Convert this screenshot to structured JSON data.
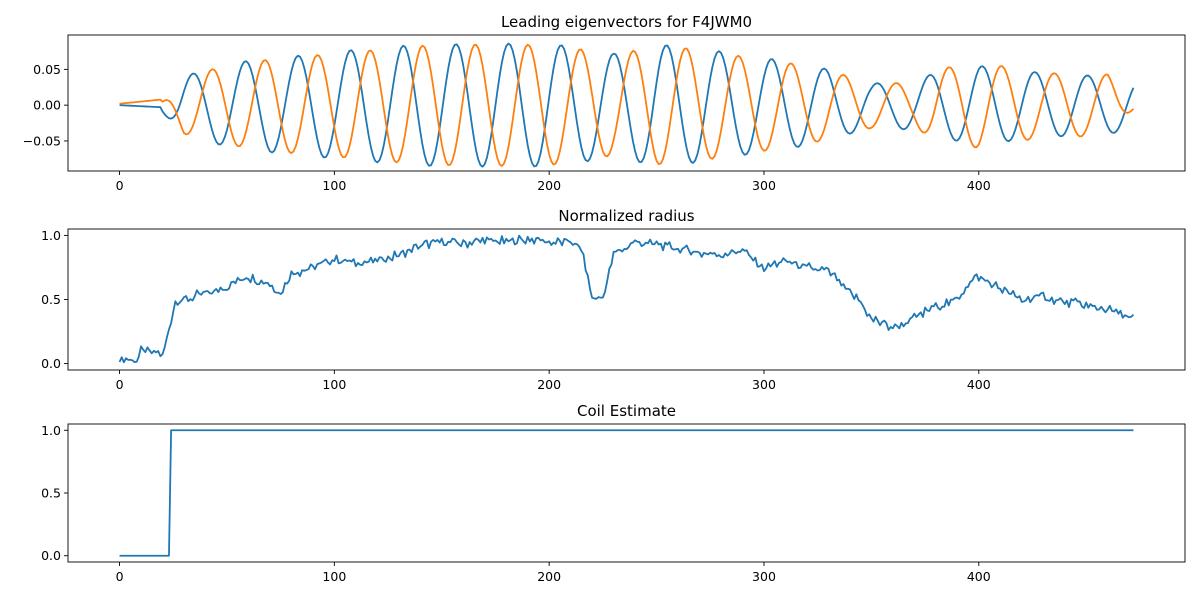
{
  "chart_data": [
    {
      "type": "line",
      "title": "Leading eigenvectors for F4JWM0",
      "xlabel": "",
      "ylabel": "",
      "xlim": [
        -24,
        496
      ],
      "ylim": [
        -0.092,
        0.098
      ],
      "xticks": [
        0,
        100,
        200,
        300,
        400
      ],
      "yticks": [
        -0.05,
        0.0,
        0.05
      ],
      "ytick_labels": [
        "−0.05",
        "0.00",
        "0.05"
      ],
      "grid": false,
      "colors": [
        "#1f77b4",
        "#ff7f0e"
      ],
      "series": [
        {
          "color": "#1f77b4",
          "description": "damped oscillation, period ~24.5, phase 0",
          "x": [
            0,
            10,
            20,
            25,
            30,
            40,
            50,
            60,
            70,
            80,
            100,
            140,
            150,
            170,
            180,
            200,
            215,
            230,
            250,
            270,
            290,
            310,
            330,
            350,
            370,
            380,
            400,
            430,
            460,
            472
          ],
          "amplitude": [
            0.0,
            0.005,
            0.01,
            0.025,
            0.04,
            0.05,
            0.058,
            0.062,
            0.066,
            0.068,
            0.075,
            0.085,
            0.085,
            0.086,
            0.086,
            0.086,
            0.08,
            0.072,
            0.085,
            0.08,
            0.07,
            0.062,
            0.05,
            0.03,
            0.035,
            0.045,
            0.055,
            0.045,
            0.04,
            0.035
          ]
        },
        {
          "color": "#ff7f0e",
          "description": "damped oscillation, period ~24.5, lagged ~9 samples",
          "x": [
            0,
            10,
            20,
            25,
            30,
            40,
            50,
            60,
            70,
            80,
            100,
            140,
            150,
            170,
            180,
            200,
            215,
            230,
            250,
            270,
            290,
            310,
            330,
            350,
            370,
            380,
            400,
            430,
            460,
            472
          ],
          "amplitude": [
            0.002,
            0.008,
            0.005,
            0.02,
            0.04,
            0.048,
            0.055,
            0.06,
            0.064,
            0.067,
            0.072,
            0.083,
            0.084,
            0.085,
            0.085,
            0.084,
            0.078,
            0.07,
            0.083,
            0.078,
            0.068,
            0.06,
            0.048,
            0.032,
            0.03,
            0.05,
            0.06,
            0.045,
            0.043,
            0.005
          ]
        }
      ]
    },
    {
      "type": "line",
      "title": "Normalized radius",
      "xlabel": "",
      "ylabel": "",
      "xlim": [
        -24,
        496
      ],
      "ylim": [
        -0.05,
        1.05
      ],
      "xticks": [
        0,
        100,
        200,
        300,
        400
      ],
      "yticks": [
        0.0,
        0.5,
        1.0
      ],
      "ytick_labels": [
        "0.0",
        "0.5",
        "1.0"
      ],
      "grid": false,
      "colors": [
        "#1f77b4"
      ],
      "series": [
        {
          "color": "#1f77b4",
          "x": [
            0,
            5,
            8,
            10,
            15,
            20,
            22,
            24,
            26,
            30,
            40,
            50,
            60,
            70,
            75,
            80,
            90,
            100,
            110,
            120,
            130,
            140,
            150,
            160,
            170,
            180,
            190,
            200,
            210,
            215,
            220,
            225,
            230,
            240,
            250,
            260,
            270,
            280,
            290,
            300,
            310,
            320,
            330,
            340,
            345,
            350,
            360,
            370,
            380,
            390,
            395,
            400,
            410,
            420,
            430,
            440,
            450,
            460,
            472
          ],
          "values": [
            0.03,
            0.02,
            0.03,
            0.1,
            0.09,
            0.07,
            0.2,
            0.35,
            0.5,
            0.5,
            0.55,
            0.6,
            0.68,
            0.62,
            0.55,
            0.7,
            0.75,
            0.82,
            0.78,
            0.8,
            0.85,
            0.92,
            0.95,
            0.93,
            0.96,
            0.95,
            0.97,
            0.95,
            0.95,
            0.9,
            0.5,
            0.52,
            0.85,
            0.95,
            0.93,
            0.9,
            0.86,
            0.85,
            0.88,
            0.75,
            0.8,
            0.75,
            0.72,
            0.55,
            0.48,
            0.35,
            0.28,
            0.35,
            0.45,
            0.5,
            0.63,
            0.68,
            0.58,
            0.5,
            0.52,
            0.48,
            0.45,
            0.42,
            0.35
          ]
        }
      ]
    },
    {
      "type": "line",
      "title": "Coil Estimate",
      "xlabel": "",
      "ylabel": "",
      "xlim": [
        -24,
        496
      ],
      "ylim": [
        -0.05,
        1.05
      ],
      "xticks": [
        0,
        100,
        200,
        300,
        400
      ],
      "yticks": [
        0.0,
        0.5,
        1.0
      ],
      "ytick_labels": [
        "0.0",
        "0.5",
        "1.0"
      ],
      "grid": false,
      "colors": [
        "#1f77b4"
      ],
      "series": [
        {
          "color": "#1f77b4",
          "x": [
            0,
            23,
            24,
            472
          ],
          "values": [
            0.0,
            0.0,
            1.0,
            1.0
          ]
        }
      ]
    }
  ]
}
